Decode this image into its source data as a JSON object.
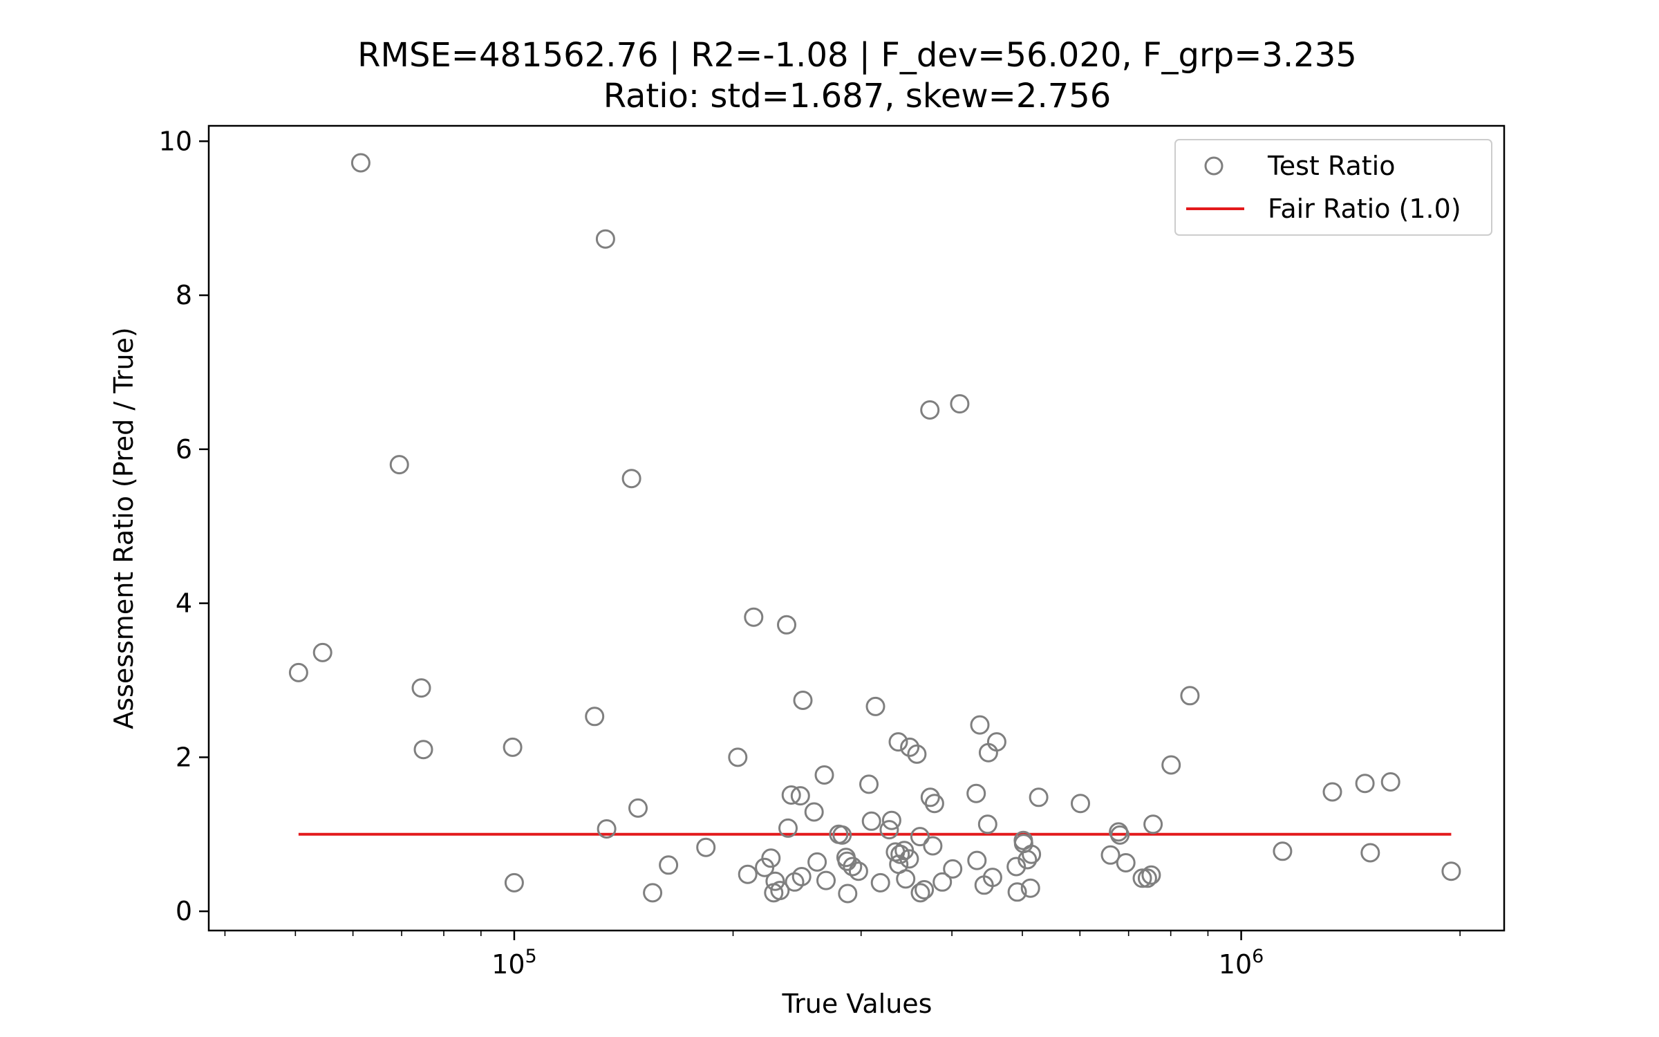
{
  "chart_data": {
    "type": "scatter",
    "title": "RMSE=481562.76 | R2=-1.08 | F_dev=56.020, F_grp=3.235",
    "subtitle": "Ratio: std=1.687, skew=2.756",
    "xlabel": "True Values",
    "ylabel": "Assessment Ratio (Pred / True)",
    "xscale": "log",
    "xlim": [
      38000,
      2300000
    ],
    "ylim": [
      -0.25,
      10.2
    ],
    "yticks": [
      0,
      2,
      4,
      6,
      8,
      10
    ],
    "yticklabels": [
      "0",
      "2",
      "4",
      "6",
      "8",
      "10"
    ],
    "xticks": [
      100000,
      1000000
    ],
    "xtick_base": "10",
    "xtick_exponents": [
      "5",
      "6"
    ],
    "grid": false,
    "legend": {
      "location": "top-right",
      "entries": [
        "Test Ratio",
        "Fair Ratio (1.0)"
      ]
    },
    "series": [
      {
        "name": "Test Ratio",
        "marker": "hollow-circle",
        "color": "#7f7f7f",
        "points": [
          [
            50500,
            3.1
          ],
          [
            54500,
            3.36
          ],
          [
            61500,
            9.72
          ],
          [
            69500,
            5.8
          ],
          [
            74500,
            2.9
          ],
          [
            75000,
            2.1
          ],
          [
            99500,
            2.13
          ],
          [
            100000,
            0.37
          ],
          [
            129000,
            2.53
          ],
          [
            133500,
            8.73
          ],
          [
            134000,
            1.07
          ],
          [
            145000,
            5.62
          ],
          [
            148000,
            1.34
          ],
          [
            155000,
            0.24
          ],
          [
            163000,
            0.6
          ],
          [
            183500,
            0.83
          ],
          [
            203000,
            2.0
          ],
          [
            209500,
            0.48
          ],
          [
            213500,
            3.82
          ],
          [
            221000,
            0.57
          ],
          [
            225500,
            0.69
          ],
          [
            227500,
            0.24
          ],
          [
            228500,
            0.39
          ],
          [
            232000,
            0.27
          ],
          [
            237000,
            3.72
          ],
          [
            238000,
            1.08
          ],
          [
            240500,
            1.51
          ],
          [
            243000,
            0.38
          ],
          [
            247500,
            1.5
          ],
          [
            248500,
            0.45
          ],
          [
            249500,
            2.74
          ],
          [
            258500,
            1.29
          ],
          [
            261000,
            0.64
          ],
          [
            267000,
            1.77
          ],
          [
            268500,
            0.4
          ],
          [
            279500,
            1.0
          ],
          [
            282500,
            0.99
          ],
          [
            286000,
            0.7
          ],
          [
            287000,
            0.65
          ],
          [
            287500,
            0.23
          ],
          [
            292000,
            0.58
          ],
          [
            297500,
            0.52
          ],
          [
            307500,
            1.65
          ],
          [
            310000,
            1.17
          ],
          [
            314000,
            2.66
          ],
          [
            319000,
            0.37
          ],
          [
            328000,
            1.06
          ],
          [
            330500,
            1.18
          ],
          [
            334500,
            0.77
          ],
          [
            337500,
            2.2
          ],
          [
            338000,
            0.61
          ],
          [
            339500,
            0.74
          ],
          [
            344000,
            0.79
          ],
          [
            345500,
            0.42
          ],
          [
            349500,
            0.68
          ],
          [
            350000,
            2.13
          ],
          [
            358000,
            2.04
          ],
          [
            361500,
            0.97
          ],
          [
            362000,
            0.24
          ],
          [
            366500,
            0.28
          ],
          [
            373000,
            6.51
          ],
          [
            373500,
            1.48
          ],
          [
            376500,
            0.85
          ],
          [
            378500,
            1.4
          ],
          [
            388000,
            0.38
          ],
          [
            401000,
            0.55
          ],
          [
            410000,
            6.59
          ],
          [
            432000,
            1.53
          ],
          [
            433000,
            0.66
          ],
          [
            437000,
            2.42
          ],
          [
            443000,
            0.34
          ],
          [
            448000,
            1.13
          ],
          [
            449000,
            2.06
          ],
          [
            455000,
            0.44
          ],
          [
            461000,
            2.2
          ],
          [
            490500,
            0.58
          ],
          [
            492000,
            0.25
          ],
          [
            501500,
            0.92
          ],
          [
            502000,
            0.88
          ],
          [
            508000,
            0.67
          ],
          [
            513000,
            0.3
          ],
          [
            514500,
            0.74
          ],
          [
            526500,
            1.48
          ],
          [
            601000,
            1.4
          ],
          [
            661000,
            0.73
          ],
          [
            678000,
            1.03
          ],
          [
            681000,
            0.99
          ],
          [
            694000,
            0.63
          ],
          [
            731000,
            0.43
          ],
          [
            743000,
            0.43
          ],
          [
            752000,
            0.47
          ],
          [
            756500,
            1.13
          ],
          [
            801000,
            1.9
          ],
          [
            850000,
            2.8
          ],
          [
            1140000,
            0.78
          ],
          [
            1335000,
            1.55
          ],
          [
            1480000,
            1.66
          ],
          [
            1505000,
            0.76
          ],
          [
            1605000,
            1.68
          ],
          [
            1945000,
            0.52
          ]
        ]
      },
      {
        "name": "Fair Ratio (1.0)",
        "type": "line",
        "color": "#e31a1c",
        "x": [
          50500,
          1945000
        ],
        "y": [
          1.0,
          1.0
        ]
      }
    ]
  }
}
